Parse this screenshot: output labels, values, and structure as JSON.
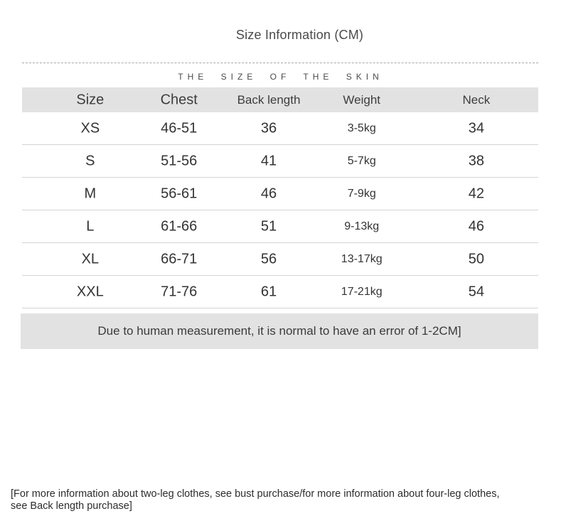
{
  "title": "Size Information (CM)",
  "tagline": "THE SIZE OF THE SKIN",
  "colors": {
    "band_background": "#e2e2e2",
    "row_separator": "#d4d4d4",
    "text": "#333333",
    "dashed_divider": "#a8a8a8"
  },
  "table": {
    "headers": [
      "Size",
      "Chest",
      "Back length",
      "Weight",
      "Neck"
    ],
    "rows": [
      {
        "size": "XS",
        "chest": "46-51",
        "back_length": "36",
        "weight": "3-5kg",
        "neck": "34"
      },
      {
        "size": "S",
        "chest": "51-56",
        "back_length": "41",
        "weight": "5-7kg",
        "neck": "38"
      },
      {
        "size": "M",
        "chest": "56-61",
        "back_length": "46",
        "weight": "7-9kg",
        "neck": "42"
      },
      {
        "size": "L",
        "chest": "61-66",
        "back_length": "51",
        "weight": "9-13kg",
        "neck": "46"
      },
      {
        "size": "XL",
        "chest": "66-71",
        "back_length": "56",
        "weight": "13-17kg",
        "neck": "50"
      },
      {
        "size": "XXL",
        "chest": "71-76",
        "back_length": "61",
        "weight": "17-21kg",
        "neck": "54"
      }
    ],
    "note": "Due to human measurement, it is normal to have an error of 1-2CM]"
  },
  "footnote": {
    "line1": "[For more information about two-leg clothes, see bust purchase/for more information about four-leg clothes,",
    "line2": "see Back length purchase]"
  }
}
